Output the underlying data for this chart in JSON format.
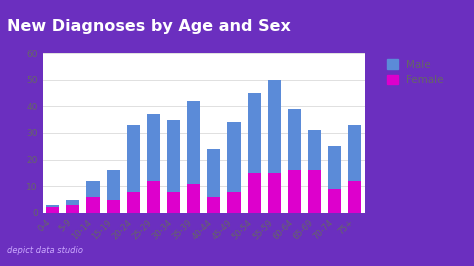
{
  "title": "New Diagnoses by Age and Sex",
  "categories": [
    "0-4",
    "5-9",
    "10-14",
    "15-19",
    "20-24",
    "25-29",
    "30-34",
    "35-39",
    "40-44",
    "45-49",
    "50-54",
    "55-59",
    "60-64",
    "65-69",
    "70-74",
    "75+"
  ],
  "male_values": [
    1,
    2,
    6,
    11,
    25,
    25,
    27,
    31,
    18,
    26,
    30,
    35,
    23,
    15,
    16,
    21
  ],
  "female_values": [
    2,
    3,
    6,
    5,
    8,
    12,
    8,
    11,
    6,
    8,
    15,
    15,
    16,
    16,
    9,
    12
  ],
  "male_color": "#5b8bd8",
  "female_color": "#dd00cc",
  "bg_color": "#ffffff",
  "title_bg_color": "#6b2fbf",
  "title_text_color": "#ffffff",
  "bottom_bg_color": "#6b2fbf",
  "axis_text_color": "#666666",
  "grid_color": "#e0e0e0",
  "ylabel_max": 60,
  "yticks": [
    0,
    10,
    20,
    30,
    40,
    50,
    60
  ],
  "watermark": "depict data studio",
  "watermark_color": "#ccaaff"
}
